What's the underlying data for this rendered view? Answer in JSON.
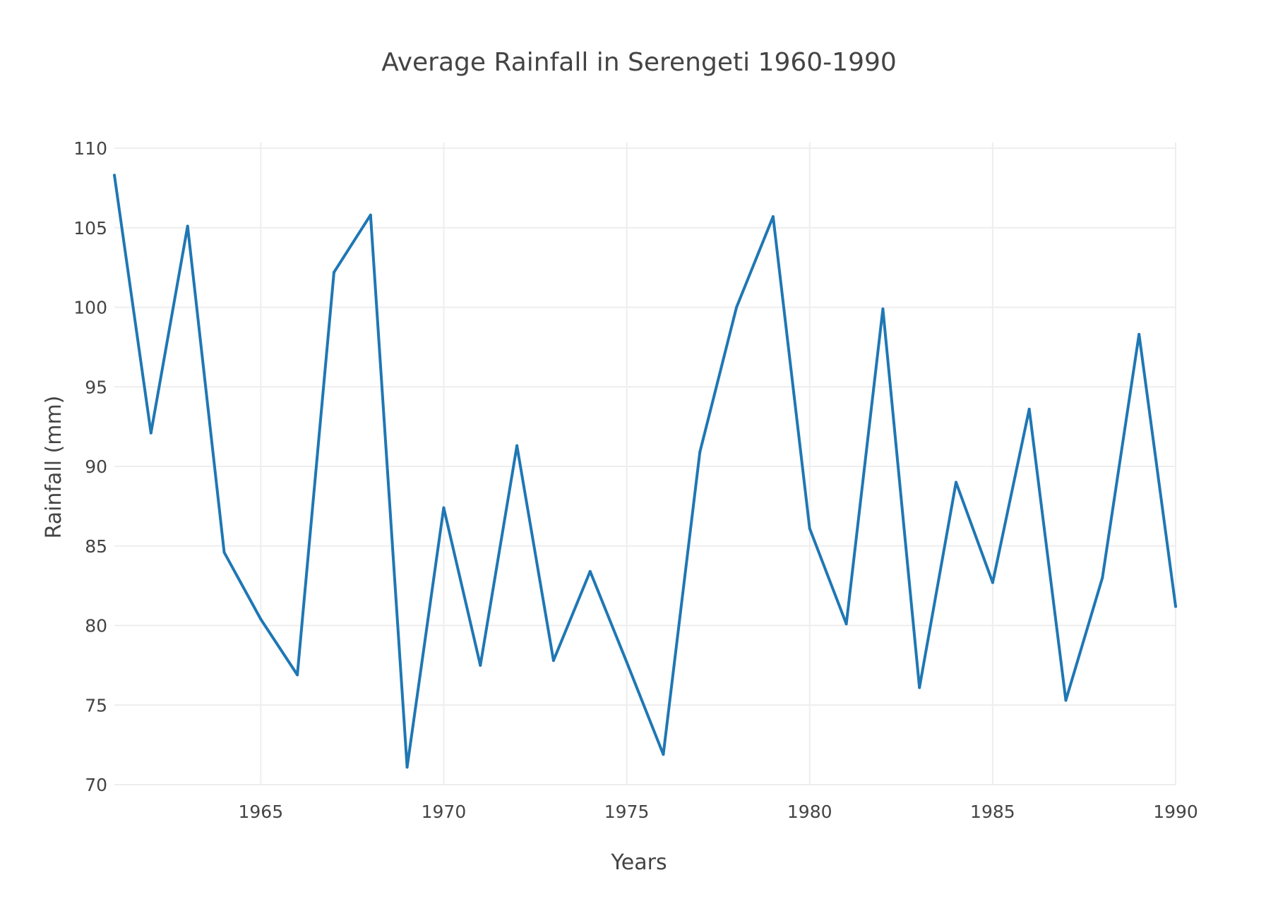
{
  "chart_data": {
    "type": "line",
    "title": "Average Rainfall in Serengeti 1960-1990",
    "xlabel": "Years",
    "ylabel": "Rainfall (mm)",
    "xlim": [
      1961,
      1990
    ],
    "ylim": [
      70,
      110
    ],
    "x_ticks": [
      1965,
      1970,
      1975,
      1980,
      1985,
      1990
    ],
    "y_ticks": [
      70,
      75,
      80,
      85,
      90,
      95,
      100,
      105,
      110
    ],
    "grid": true,
    "legend": "none",
    "series": [
      {
        "color": "#1f77b4",
        "x": [
          1961,
          1962,
          1963,
          1964,
          1965,
          1966,
          1967,
          1968,
          1969,
          1970,
          1971,
          1972,
          1973,
          1974,
          1975,
          1976,
          1977,
          1978,
          1979,
          1980,
          1981,
          1982,
          1983,
          1984,
          1985,
          1986,
          1987,
          1988,
          1989,
          1990
        ],
        "y": [
          108.3,
          92.1,
          105.1,
          84.6,
          80.4,
          76.9,
          102.2,
          105.8,
          71.1,
          87.4,
          77.5,
          91.3,
          77.8,
          83.4,
          77.7,
          71.9,
          90.9,
          100.0,
          105.7,
          86.1,
          80.1,
          99.9,
          76.1,
          89.0,
          82.7,
          93.6,
          75.3,
          83.0,
          98.3,
          81.2
        ]
      }
    ]
  }
}
